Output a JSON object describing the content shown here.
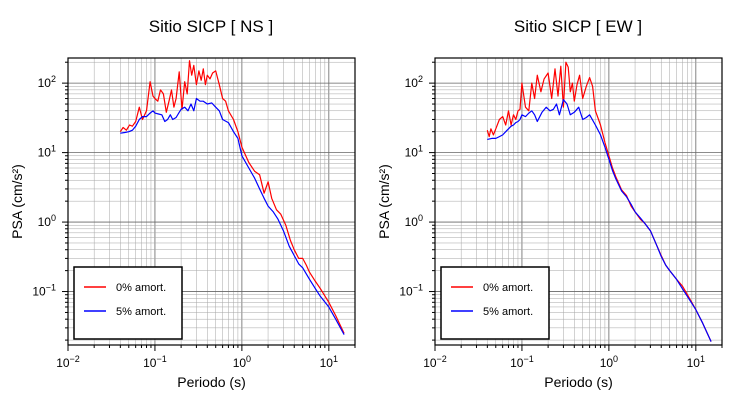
{
  "chart_data": [
    {
      "type": "line",
      "title": "Sitio SICP [ NS ]",
      "xlabel": "Periodo (s)",
      "ylabel": "PSA (cm/s²)",
      "xscale": "log",
      "yscale": "log",
      "xlim": [
        0.01,
        20
      ],
      "ylim": [
        0.017,
        230
      ],
      "xticks": [
        {
          "v": 0.01,
          "b": "10",
          "e": "−2"
        },
        {
          "v": 0.1,
          "b": "10",
          "e": "−1"
        },
        {
          "v": 1,
          "b": "10",
          "e": "0"
        },
        {
          "v": 10,
          "b": "10",
          "e": "1"
        }
      ],
      "yticks": [
        {
          "v": 0.1,
          "b": "10",
          "e": "−1"
        },
        {
          "v": 1,
          "b": "10",
          "e": "0"
        },
        {
          "v": 10,
          "b": "10",
          "e": "1"
        },
        {
          "v": 100,
          "b": "10",
          "e": "2"
        }
      ],
      "grid": true,
      "legend": "bottom-left",
      "series": [
        {
          "name": "0% amort.",
          "color": "#ff0000",
          "x": [
            0.04,
            0.043,
            0.047,
            0.051,
            0.055,
            0.06,
            0.066,
            0.072,
            0.08,
            0.088,
            0.095,
            0.1,
            0.108,
            0.116,
            0.125,
            0.135,
            0.145,
            0.155,
            0.165,
            0.175,
            0.19,
            0.205,
            0.22,
            0.235,
            0.25,
            0.265,
            0.28,
            0.3,
            0.32,
            0.34,
            0.36,
            0.38,
            0.4,
            0.43,
            0.46,
            0.5,
            0.55,
            0.6,
            0.65,
            0.7,
            0.8,
            0.9,
            1.0,
            1.2,
            1.4,
            1.6,
            1.8,
            2.0,
            2.2,
            2.5,
            2.8,
            3.2,
            3.6,
            4.0,
            4.5,
            5.0,
            5.5,
            6.0,
            7.0,
            8.0,
            10.0,
            12.0,
            15.0
          ],
          "y": [
            20,
            23,
            21,
            25,
            24,
            28,
            45,
            30,
            40,
            105,
            65,
            60,
            55,
            80,
            70,
            38,
            55,
            80,
            45,
            60,
            145,
            42,
            105,
            70,
            210,
            130,
            180,
            95,
            150,
            110,
            160,
            95,
            130,
            115,
            140,
            150,
            95,
            60,
            55,
            40,
            30,
            20,
            12,
            7.2,
            5.4,
            4.8,
            2.6,
            3.8,
            2.2,
            1.5,
            1.3,
            0.9,
            0.55,
            0.4,
            0.3,
            0.3,
            0.24,
            0.19,
            0.14,
            0.11,
            0.07,
            0.045,
            0.025
          ]
        },
        {
          "name": "5% amort.",
          "color": "#0000ff",
          "x": [
            0.04,
            0.045,
            0.05,
            0.055,
            0.06,
            0.066,
            0.072,
            0.08,
            0.088,
            0.095,
            0.1,
            0.11,
            0.12,
            0.13,
            0.14,
            0.15,
            0.16,
            0.175,
            0.19,
            0.2,
            0.22,
            0.24,
            0.26,
            0.28,
            0.3,
            0.33,
            0.36,
            0.4,
            0.45,
            0.5,
            0.55,
            0.6,
            0.7,
            0.8,
            0.9,
            1.0,
            1.2,
            1.4,
            1.6,
            1.8,
            2.0,
            2.3,
            2.6,
            3.0,
            3.5,
            4.0,
            4.5,
            5.0,
            6.0,
            7.0,
            8.0,
            10.0,
            12.0,
            15.0
          ],
          "y": [
            19,
            19.5,
            20,
            21,
            24,
            30,
            33,
            33,
            37,
            40,
            37,
            36,
            35,
            28,
            30,
            35,
            30,
            32,
            38,
            42,
            45,
            40,
            50,
            40,
            60,
            55,
            55,
            50,
            52,
            45,
            40,
            30,
            27,
            20,
            16,
            9,
            6,
            4.3,
            3.0,
            2.2,
            1.7,
            1.4,
            1.1,
            0.75,
            0.45,
            0.33,
            0.25,
            0.22,
            0.15,
            0.11,
            0.085,
            0.06,
            0.04,
            0.024
          ]
        }
      ]
    },
    {
      "type": "line",
      "title": "Sitio SICP [ EW ]",
      "xlabel": "Periodo (s)",
      "ylabel": "PSA (cm/s²)",
      "xscale": "log",
      "yscale": "log",
      "xlim": [
        0.01,
        20
      ],
      "ylim": [
        0.017,
        230
      ],
      "xticks": [
        {
          "v": 0.01,
          "b": "10",
          "e": "−2"
        },
        {
          "v": 0.1,
          "b": "10",
          "e": "−1"
        },
        {
          "v": 1,
          "b": "10",
          "e": "0"
        },
        {
          "v": 10,
          "b": "10",
          "e": "1"
        }
      ],
      "yticks": [
        {
          "v": 0.1,
          "b": "10",
          "e": "−1"
        },
        {
          "v": 1,
          "b": "10",
          "e": "0"
        },
        {
          "v": 10,
          "b": "10",
          "e": "1"
        },
        {
          "v": 100,
          "b": "10",
          "e": "2"
        }
      ],
      "grid": true,
      "legend": "bottom-left",
      "series": [
        {
          "name": "0% amort.",
          "color": "#ff0000",
          "x": [
            0.04,
            0.042,
            0.044,
            0.047,
            0.05,
            0.055,
            0.06,
            0.065,
            0.07,
            0.075,
            0.08,
            0.085,
            0.09,
            0.095,
            0.1,
            0.11,
            0.12,
            0.13,
            0.14,
            0.15,
            0.165,
            0.18,
            0.2,
            0.22,
            0.24,
            0.26,
            0.28,
            0.3,
            0.32,
            0.34,
            0.36,
            0.38,
            0.4,
            0.43,
            0.46,
            0.5,
            0.55,
            0.6,
            0.65,
            0.7,
            0.8,
            0.9,
            1.0,
            1.1,
            1.2,
            1.4,
            1.6,
            1.8,
            2.0,
            2.3,
            2.6,
            3.0,
            3.5,
            4.0,
            4.5,
            5.0,
            6.0,
            7.0,
            8.0,
            10.0,
            12.0,
            15.0
          ],
          "y": [
            21,
            17,
            22,
            18,
            22,
            30,
            33,
            25,
            40,
            25,
            35,
            30,
            40,
            42,
            100,
            45,
            40,
            100,
            60,
            130,
            75,
            115,
            140,
            60,
            160,
            65,
            175,
            45,
            200,
            170,
            75,
            100,
            55,
            95,
            130,
            60,
            90,
            120,
            90,
            40,
            25,
            14,
            9,
            6,
            4.5,
            2.9,
            2.4,
            1.7,
            1.4,
            1.1,
            0.95,
            0.75,
            0.48,
            0.33,
            0.24,
            0.2,
            0.15,
            0.12,
            0.09,
            0.055,
            0.035,
            0.019
          ]
        },
        {
          "name": "5% amort.",
          "color": "#0000ff",
          "x": [
            0.04,
            0.045,
            0.05,
            0.055,
            0.06,
            0.065,
            0.07,
            0.075,
            0.08,
            0.085,
            0.09,
            0.095,
            0.1,
            0.11,
            0.12,
            0.13,
            0.14,
            0.15,
            0.17,
            0.19,
            0.21,
            0.23,
            0.25,
            0.27,
            0.3,
            0.33,
            0.36,
            0.4,
            0.45,
            0.5,
            0.55,
            0.6,
            0.7,
            0.8,
            0.9,
            1.0,
            1.1,
            1.2,
            1.4,
            1.6,
            1.8,
            2.0,
            2.3,
            2.6,
            3.0,
            3.5,
            4.0,
            4.5,
            5.0,
            6.0,
            7.0,
            8.0,
            10.0,
            12.0,
            15.0
          ],
          "y": [
            15.5,
            16,
            16,
            17,
            18,
            20,
            22,
            24,
            25,
            27,
            28,
            30,
            35,
            33,
            37,
            40,
            35,
            28,
            38,
            45,
            40,
            42,
            50,
            35,
            58,
            50,
            35,
            38,
            45,
            30,
            32,
            35,
            25,
            18,
            12,
            8,
            5.5,
            4.2,
            2.8,
            2.3,
            1.8,
            1.4,
            1.15,
            0.95,
            0.75,
            0.48,
            0.32,
            0.24,
            0.2,
            0.15,
            0.11,
            0.085,
            0.055,
            0.035,
            0.019
          ]
        }
      ]
    }
  ]
}
